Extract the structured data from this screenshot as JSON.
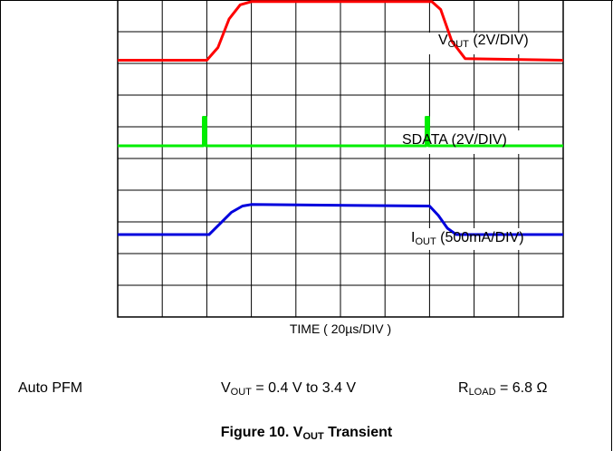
{
  "chart_data": {
    "type": "line",
    "xlabel": "TIME ( 20µs/DIV )",
    "x_divisions": 10,
    "y_divisions": 10,
    "grid": true,
    "series": [
      {
        "name_main": "V",
        "name_sub": "OUT",
        "name_rest": " (2V/DIV)",
        "color": "#ff0000",
        "points": [
          [
            0,
            -1.9
          ],
          [
            2,
            -1.9
          ],
          [
            2.25,
            -1.5
          ],
          [
            2.5,
            -0.6
          ],
          [
            2.75,
            -0.15
          ],
          [
            3.0,
            -0.05
          ],
          [
            7.05,
            -0.05
          ],
          [
            7.25,
            -0.3
          ],
          [
            7.5,
            -1.3
          ],
          [
            7.8,
            -1.85
          ],
          [
            10,
            -1.9
          ]
        ]
      },
      {
        "name_main": "SDATA",
        "name_sub": "",
        "name_rest": " (2V/DIV)",
        "color": "#00ee00",
        "points": [
          [
            0,
            -4.6
          ],
          [
            1.92,
            -4.6
          ],
          [
            1.92,
            -3.7
          ],
          [
            1.98,
            -3.7
          ],
          [
            1.98,
            -4.6
          ],
          [
            6.92,
            -4.6
          ],
          [
            6.92,
            -3.7
          ],
          [
            6.98,
            -3.7
          ],
          [
            6.98,
            -4.6
          ],
          [
            10,
            -4.6
          ]
        ]
      },
      {
        "name_main": "I",
        "name_sub": "OUT",
        "name_rest": " (500mA/DIV)",
        "color": "#0000dd",
        "points": [
          [
            0,
            -7.4
          ],
          [
            2.05,
            -7.4
          ],
          [
            2.3,
            -7.05
          ],
          [
            2.55,
            -6.7
          ],
          [
            2.8,
            -6.5
          ],
          [
            3.0,
            -6.45
          ],
          [
            7.0,
            -6.5
          ],
          [
            7.2,
            -6.8
          ],
          [
            7.4,
            -7.2
          ],
          [
            7.6,
            -7.4
          ],
          [
            10,
            -7.4
          ]
        ]
      }
    ]
  },
  "conditions": {
    "mode": "Auto PFM",
    "vout_main": "V",
    "vout_sub": "OUT",
    "vout_rest": " = 0.4 V to 3.4 V",
    "rload_main": "R",
    "rload_sub": "LOAD",
    "rload_rest": " = 6.8 Ω"
  },
  "figure": {
    "prefix": "Figure 10. V",
    "sub": "OUT",
    "suffix": " Transient"
  }
}
